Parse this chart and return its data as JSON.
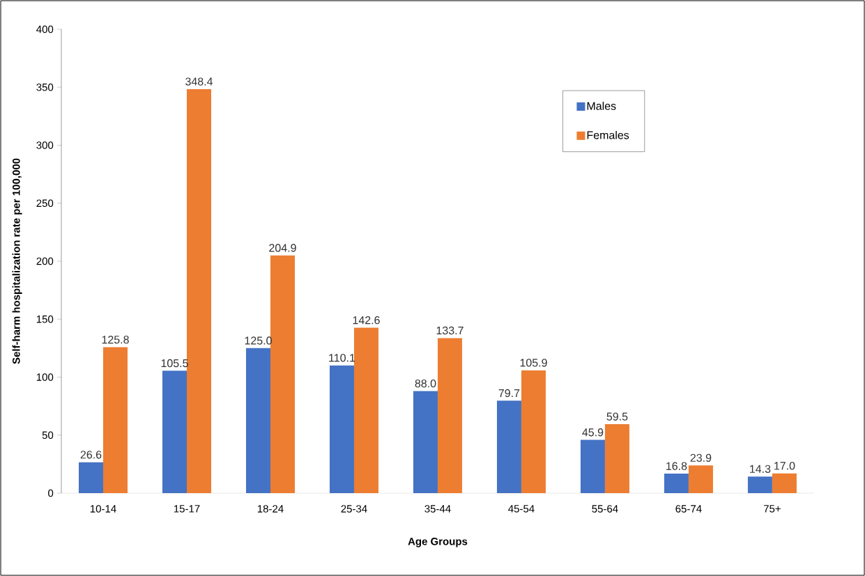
{
  "chart_data": {
    "type": "bar",
    "xlabel": "Age Groups",
    "ylabel": "Self-harm hospitalization rate per 100,000",
    "categories": [
      "10-14",
      "15-17",
      "18-24",
      "25-34",
      "35-44",
      "45-54",
      "55-64",
      "65-74",
      "75+"
    ],
    "series": [
      {
        "name": "Males",
        "color": "#4472c4",
        "values": [
          26.6,
          105.5,
          125.0,
          110.1,
          88.0,
          79.7,
          45.9,
          16.8,
          14.3
        ],
        "value_labels": [
          "26.6",
          "105.5",
          "125.0",
          "110.1",
          "88.0",
          "79.7",
          "45.9",
          "16.8",
          "14.3"
        ]
      },
      {
        "name": "Females",
        "color": "#ed7d31",
        "values": [
          125.8,
          348.4,
          204.9,
          142.6,
          133.7,
          105.9,
          59.5,
          23.9,
          17.0
        ],
        "value_labels": [
          "125.8",
          "348.4",
          "204.9",
          "142.6",
          "133.7",
          "105.9",
          "59.5",
          "23.9",
          "17.0"
        ]
      }
    ],
    "ylim": [
      0,
      400
    ],
    "yticks": [
      0,
      50,
      100,
      150,
      200,
      250,
      300,
      350,
      400
    ],
    "grid": false,
    "legend": "top right"
  }
}
